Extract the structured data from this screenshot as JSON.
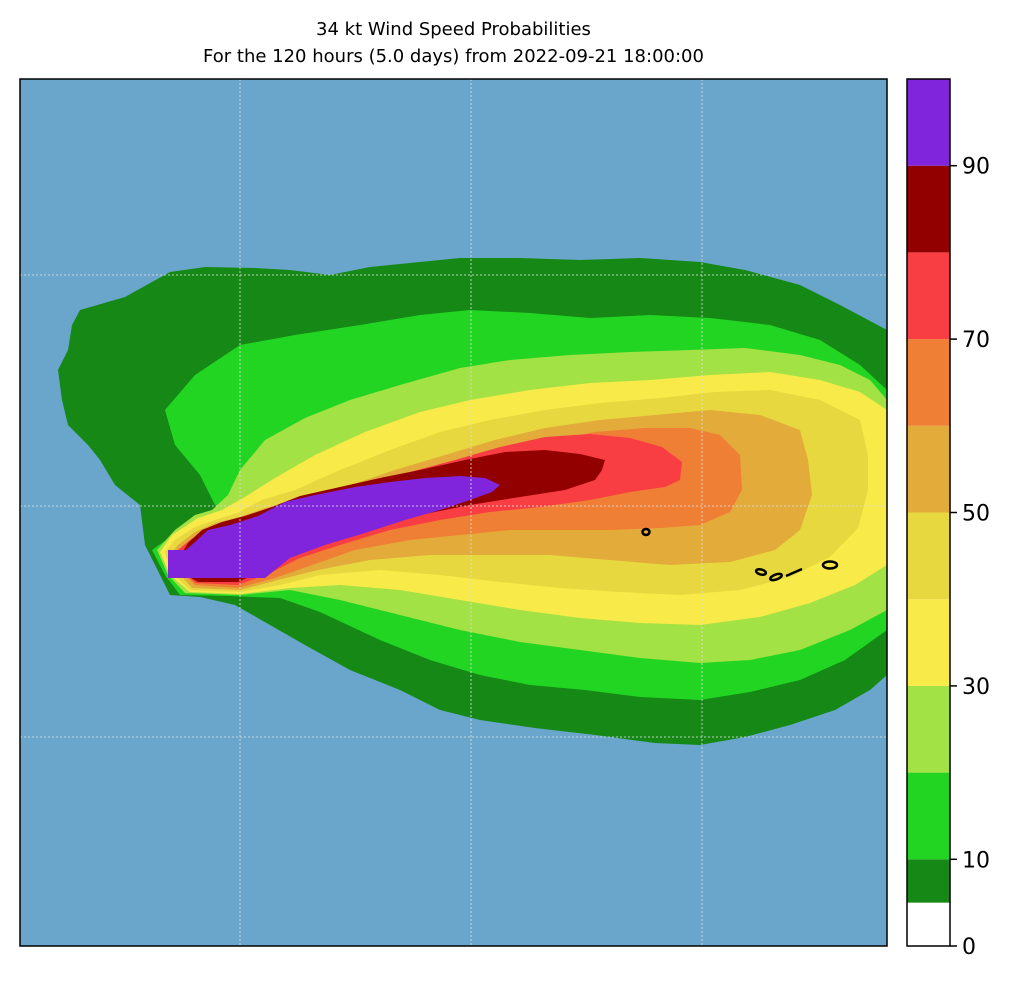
{
  "title": "34 kt Wind Speed Probabilities",
  "subtitle": "For the 120 hours (5.0 days) from 2022-09-21 18:00:00",
  "colorbar": {
    "ticks": [
      {
        "value": 0,
        "label": "0"
      },
      {
        "value": 10,
        "label": "10"
      },
      {
        "value": 30,
        "label": "30"
      },
      {
        "value": 50,
        "label": "50"
      },
      {
        "value": 70,
        "label": "70"
      },
      {
        "value": 90,
        "label": "90"
      }
    ],
    "range": [
      0,
      100
    ],
    "bands": [
      {
        "from": 0,
        "to": 5,
        "color": "#ffffff"
      },
      {
        "from": 5,
        "to": 10,
        "color": "#158815"
      },
      {
        "from": 10,
        "to": 20,
        "color": "#23d523"
      },
      {
        "from": 20,
        "to": 30,
        "color": "#a2e244"
      },
      {
        "from": 30,
        "to": 40,
        "color": "#f8ea48"
      },
      {
        "from": 40,
        "to": 50,
        "color": "#e7d83f"
      },
      {
        "from": 50,
        "to": 60,
        "color": "#e3ab3a"
      },
      {
        "from": 60,
        "to": 70,
        "color": "#ee7f35"
      },
      {
        "from": 70,
        "to": 80,
        "color": "#f93e43"
      },
      {
        "from": 80,
        "to": 90,
        "color": "#930000"
      },
      {
        "from": 90,
        "to": 100,
        "color": "#8025db"
      }
    ]
  },
  "colors": {
    "ocean": "#6aa6cb",
    "land_outline": "#000000",
    "gridline": "#dddddd"
  }
}
